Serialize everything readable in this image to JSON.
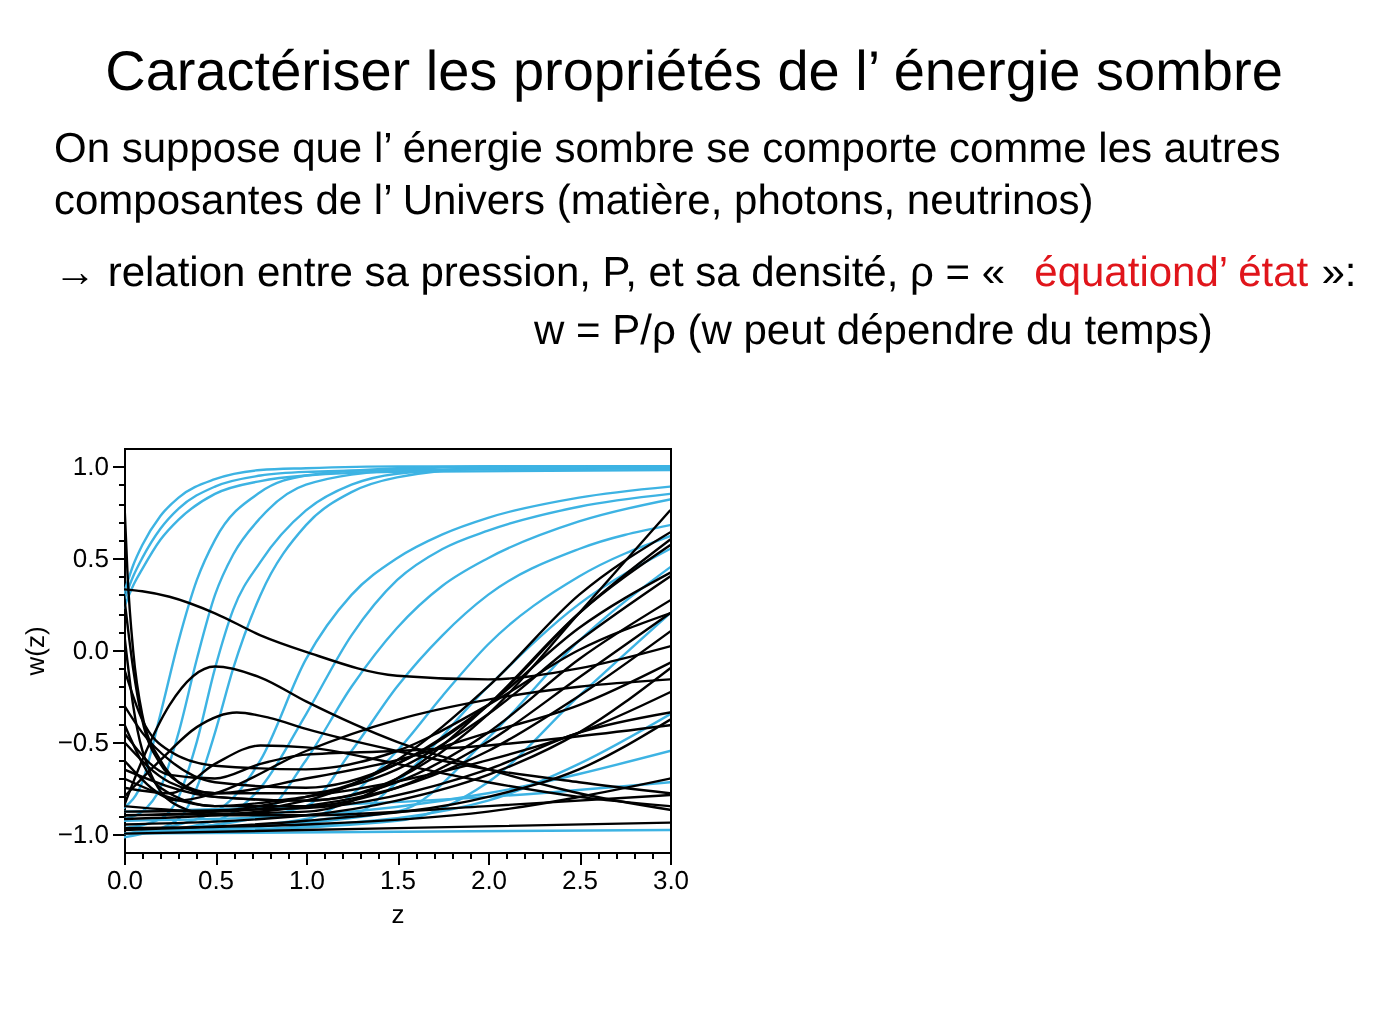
{
  "chart_data": {
    "type": "line",
    "title": "Caractériser les propriétés de l’ énergie sombre",
    "subtitle": "On suppose que l’ énergie sombre se comporte comme les autres composantes de l’ Univers (matière, photons, neutrinos)",
    "annotations": [
      "→ relation entre sa pression, P, et sa densité, ρ  = «",
      "équationd’ état",
      "»:",
      "w = P/ρ  (w peut dépendre du temps)"
    ],
    "xlabel": "z",
    "ylabel": "w(z)",
    "xlim": [
      0,
      3
    ],
    "ylim": [
      -1.1,
      1.1
    ],
    "xticks": [
      {
        "value": 0,
        "label": "0.0"
      },
      {
        "value": 0.1,
        "label": null
      },
      {
        "value": 0.2,
        "label": null
      },
      {
        "value": 0.3,
        "label": null
      },
      {
        "value": 0.4,
        "label": null
      },
      {
        "value": 0.5,
        "label": "0.5"
      },
      {
        "value": 0.6,
        "label": null
      },
      {
        "value": 0.7,
        "label": null
      },
      {
        "value": 0.8,
        "label": null
      },
      {
        "value": 0.9,
        "label": null
      },
      {
        "value": 1,
        "label": "1.0"
      },
      {
        "value": 1.1,
        "label": null
      },
      {
        "value": 1.2,
        "label": null
      },
      {
        "value": 1.3,
        "label": null
      },
      {
        "value": 1.4,
        "label": null
      },
      {
        "value": 1.5,
        "label": "1.5"
      },
      {
        "value": 1.6,
        "label": null
      },
      {
        "value": 1.7,
        "label": null
      },
      {
        "value": 1.8,
        "label": null
      },
      {
        "value": 1.9,
        "label": null
      },
      {
        "value": 2,
        "label": "2.0"
      },
      {
        "value": 2.1,
        "label": null
      },
      {
        "value": 2.2,
        "label": null
      },
      {
        "value": 2.3,
        "label": null
      },
      {
        "value": 2.4,
        "label": null
      },
      {
        "value": 2.5,
        "label": "2.5"
      },
      {
        "value": 2.6,
        "label": null
      },
      {
        "value": 2.7,
        "label": null
      },
      {
        "value": 2.8,
        "label": null
      },
      {
        "value": 2.9,
        "label": null
      },
      {
        "value": 3,
        "label": "3.0"
      }
    ],
    "yticks": [
      {
        "value": -1,
        "label": "−1.0"
      },
      {
        "value": -0.9,
        "label": null
      },
      {
        "value": -0.8,
        "label": null
      },
      {
        "value": -0.7,
        "label": null
      },
      {
        "value": -0.6,
        "label": null
      },
      {
        "value": -0.5,
        "label": "−0.5"
      },
      {
        "value": -0.4,
        "label": null
      },
      {
        "value": -0.3,
        "label": null
      },
      {
        "value": -0.2,
        "label": null
      },
      {
        "value": -0.1,
        "label": null
      },
      {
        "value": 0,
        "label": "0.0"
      },
      {
        "value": 0.1,
        "label": null
      },
      {
        "value": 0.2,
        "label": null
      },
      {
        "value": 0.3,
        "label": null
      },
      {
        "value": 0.4,
        "label": null
      },
      {
        "value": 0.5,
        "label": "0.5"
      },
      {
        "value": 0.6,
        "label": null
      },
      {
        "value": 0.7,
        "label": null
      },
      {
        "value": 0.8,
        "label": null
      },
      {
        "value": 0.9,
        "label": null
      },
      {
        "value": 1,
        "label": "1.0"
      }
    ],
    "grid": false,
    "series": [
      {
        "color": "#3db3e3",
        "x": [
          0,
          0.05,
          0.1,
          0.2,
          0.3,
          0.5,
          0.75,
          1.0,
          1.5,
          3.0
        ],
        "values": [
          0.31,
          0.46,
          0.57,
          0.73,
          0.83,
          0.93,
          0.98,
          0.99,
          1.0,
          1.0
        ]
      },
      {
        "color": "#3db3e3",
        "x": [
          0,
          0.05,
          0.1,
          0.2,
          0.3,
          0.5,
          0.75,
          1.0,
          1.5,
          3.0
        ],
        "values": [
          0.27,
          0.4,
          0.5,
          0.66,
          0.77,
          0.89,
          0.95,
          0.97,
          0.98,
          0.99
        ]
      },
      {
        "color": "#3db3e3",
        "x": [
          0,
          0.05,
          0.1,
          0.2,
          0.3,
          0.5,
          0.75,
          1.0,
          1.5,
          3.0
        ],
        "values": [
          0.23,
          0.35,
          0.44,
          0.6,
          0.71,
          0.85,
          0.92,
          0.95,
          0.97,
          0.98
        ]
      },
      {
        "color": "#3db3e3",
        "x": [
          0,
          0.1,
          0.2,
          0.3,
          0.4,
          0.5,
          0.75,
          1.0,
          1.5,
          2.0,
          3.0
        ],
        "values": [
          -0.86,
          -0.72,
          -0.35,
          0.05,
          0.38,
          0.6,
          0.86,
          0.95,
          0.99,
          1.0,
          1.0
        ]
      },
      {
        "color": "#3db3e3",
        "x": [
          0,
          0.1,
          0.2,
          0.3,
          0.4,
          0.5,
          0.6,
          0.75,
          1.0,
          1.5,
          2.0,
          3.0
        ],
        "values": [
          -0.92,
          -0.88,
          -0.75,
          -0.45,
          -0.05,
          0.3,
          0.52,
          0.72,
          0.9,
          0.98,
          1.0,
          1.0
        ]
      },
      {
        "color": "#3db3e3",
        "x": [
          0,
          0.2,
          0.3,
          0.4,
          0.5,
          0.6,
          0.75,
          1.0,
          1.25,
          1.5,
          2.0,
          3.0
        ],
        "values": [
          -0.97,
          -0.92,
          -0.8,
          -0.5,
          -0.1,
          0.22,
          0.48,
          0.76,
          0.9,
          0.96,
          0.99,
          1.0
        ]
      },
      {
        "color": "#3db3e3",
        "x": [
          0,
          0.3,
          0.4,
          0.5,
          0.6,
          0.75,
          1.0,
          1.25,
          1.5,
          2.0,
          3.0
        ],
        "values": [
          -1.02,
          -0.92,
          -0.75,
          -0.45,
          -0.1,
          0.3,
          0.68,
          0.86,
          0.94,
          0.99,
          1.0
        ]
      },
      {
        "color": "#3db3e3",
        "x": [
          0,
          0.5,
          0.75,
          1.0,
          1.25,
          1.5,
          1.75,
          2.0,
          2.5,
          3.0
        ],
        "values": [
          -1.0,
          -0.88,
          -0.6,
          -0.05,
          0.3,
          0.5,
          0.63,
          0.72,
          0.83,
          0.89
        ]
      },
      {
        "color": "#3db3e3",
        "x": [
          0,
          0.5,
          0.75,
          1.0,
          1.25,
          1.5,
          1.75,
          2.0,
          2.5,
          3.0
        ],
        "values": [
          -1.0,
          -0.93,
          -0.75,
          -0.35,
          0.08,
          0.38,
          0.55,
          0.65,
          0.78,
          0.85
        ]
      },
      {
        "color": "#3db3e3",
        "x": [
          0,
          0.75,
          1.0,
          1.25,
          1.5,
          1.75,
          2.0,
          2.5,
          3.0
        ],
        "values": [
          -1.0,
          -0.9,
          -0.6,
          -0.2,
          0.12,
          0.35,
          0.5,
          0.7,
          0.82
        ]
      },
      {
        "color": "#3db3e3",
        "x": [
          0,
          1.0,
          1.25,
          1.5,
          1.75,
          2.0,
          2.5,
          3.0
        ],
        "values": [
          -1.0,
          -0.85,
          -0.55,
          -0.2,
          0.08,
          0.3,
          0.55,
          0.68
        ]
      },
      {
        "color": "#3db3e3",
        "x": [
          0,
          1.0,
          1.5,
          1.75,
          2.0,
          2.5,
          3.0
        ],
        "values": [
          -1.0,
          -0.92,
          -0.55,
          -0.25,
          0.03,
          0.4,
          0.62
        ]
      },
      {
        "color": "#3db3e3",
        "x": [
          0,
          1.25,
          1.5,
          2.0,
          2.5,
          3.0
        ],
        "values": [
          -1.0,
          -0.9,
          -0.72,
          -0.2,
          0.25,
          0.55
        ]
      },
      {
        "color": "#3db3e3",
        "x": [
          0,
          1.5,
          2.0,
          2.5,
          3.0
        ],
        "values": [
          -1.0,
          -0.88,
          -0.48,
          0.05,
          0.45
        ]
      },
      {
        "color": "#3db3e3",
        "x": [
          0,
          1.5,
          2.0,
          2.5,
          3.0
        ],
        "values": [
          -1.0,
          -0.93,
          -0.72,
          -0.25,
          0.2
        ]
      },
      {
        "color": "#3db3e3",
        "x": [
          0,
          1.0,
          2.0,
          2.5,
          3.0
        ],
        "values": [
          -1.0,
          -0.96,
          -0.82,
          -0.62,
          -0.35
        ]
      },
      {
        "color": "#3db3e3",
        "x": [
          0,
          1.0,
          2.0,
          3.0
        ],
        "values": [
          -0.93,
          -0.9,
          -0.78,
          -0.55
        ]
      },
      {
        "color": "#3db3e3",
        "x": [
          0,
          1.0,
          2.0,
          3.0
        ],
        "values": [
          -0.88,
          -0.85,
          -0.8,
          -0.72
        ]
      },
      {
        "color": "#3db3e3",
        "x": [
          0,
          1.5,
          3.0
        ],
        "values": [
          -1.0,
          -0.99,
          -0.98
        ]
      },
      {
        "color": "#000000",
        "x": [
          0,
          0.1,
          0.25,
          0.5,
          0.75,
          1.0,
          1.5,
          2.0,
          2.5,
          3.0
        ],
        "values": [
          0.33,
          0.32,
          0.29,
          0.2,
          0.08,
          -0.01,
          -0.14,
          -0.16,
          -0.1,
          0.02
        ]
      },
      {
        "color": "#000000",
        "x": [
          0,
          0.1,
          0.25,
          0.5,
          0.75,
          1.0,
          1.5,
          2.0,
          2.5,
          3.0
        ],
        "values": [
          -0.85,
          -0.6,
          -0.3,
          -0.09,
          -0.15,
          -0.28,
          -0.5,
          -0.65,
          -0.78,
          -0.87
        ]
      },
      {
        "color": "#000000",
        "x": [
          0,
          0.2,
          0.4,
          0.62,
          0.8,
          1.0,
          1.5,
          2.0,
          2.5,
          3.0
        ],
        "values": [
          -0.8,
          -0.6,
          -0.42,
          -0.34,
          -0.37,
          -0.43,
          -0.55,
          -0.65,
          -0.72,
          -0.78
        ]
      },
      {
        "color": "#000000",
        "x": [
          0,
          0.05,
          0.1,
          0.2,
          0.3,
          0.5,
          1.0,
          1.5,
          2.0,
          2.5,
          3.0
        ],
        "values": [
          0.3,
          -0.1,
          -0.38,
          -0.62,
          -0.72,
          -0.78,
          -0.78,
          -0.62,
          -0.3,
          0.12,
          0.42
        ]
      },
      {
        "color": "#000000",
        "x": [
          0,
          0.02,
          0.05,
          0.1,
          0.2,
          0.3,
          0.5,
          1.0,
          1.5,
          2.0,
          2.5,
          3.0
        ],
        "values": [
          0.85,
          0.4,
          0.0,
          -0.35,
          -0.6,
          -0.72,
          -0.8,
          -0.82,
          -0.72,
          -0.45,
          -0.05,
          0.27
        ]
      },
      {
        "color": "#000000",
        "x": [
          0,
          0.1,
          0.25,
          0.5,
          1.0,
          1.5,
          2.0,
          2.5,
          3.0
        ],
        "values": [
          -0.1,
          -0.38,
          -0.55,
          -0.63,
          -0.65,
          -0.55,
          -0.3,
          0.0,
          0.2
        ]
      },
      {
        "color": "#000000",
        "x": [
          0,
          0.1,
          0.25,
          0.5,
          1.0,
          1.5,
          2.0,
          2.5,
          3.0
        ],
        "values": [
          -0.3,
          -0.45,
          -0.6,
          -0.72,
          -0.75,
          -0.62,
          -0.3,
          0.2,
          0.6
        ]
      },
      {
        "color": "#000000",
        "x": [
          0,
          0.5,
          1.0,
          1.5,
          2.0,
          2.5,
          3.0
        ],
        "values": [
          -0.65,
          -0.8,
          -0.82,
          -0.7,
          -0.35,
          0.2,
          0.76
        ]
      },
      {
        "color": "#000000",
        "x": [
          0,
          0.5,
          1.0,
          1.5,
          2.0,
          2.5,
          3.0
        ],
        "values": [
          -0.85,
          -0.88,
          -0.82,
          -0.6,
          -0.2,
          0.3,
          0.64
        ]
      },
      {
        "color": "#000000",
        "x": [
          0,
          0.5,
          1.0,
          1.5,
          2.0,
          2.5,
          3.0
        ],
        "values": [
          -0.9,
          -0.88,
          -0.8,
          -0.65,
          -0.35,
          0.05,
          0.4
        ]
      },
      {
        "color": "#000000",
        "x": [
          0,
          0.5,
          1.0,
          1.5,
          2.0,
          2.5,
          3.0
        ],
        "values": [
          -0.92,
          -0.9,
          -0.85,
          -0.75,
          -0.55,
          -0.25,
          0.1
        ]
      },
      {
        "color": "#000000",
        "x": [
          0,
          1.0,
          1.5,
          2.0,
          2.5,
          3.0
        ],
        "values": [
          -0.95,
          -0.9,
          -0.82,
          -0.68,
          -0.45,
          -0.1
        ]
      },
      {
        "color": "#000000",
        "x": [
          0,
          1.0,
          2.0,
          2.5,
          3.0
        ],
        "values": [
          -0.98,
          -0.93,
          -0.8,
          -0.65,
          -0.38
        ]
      },
      {
        "color": "#000000",
        "x": [
          0,
          1.0,
          2.0,
          3.0
        ],
        "values": [
          -0.97,
          -0.95,
          -0.88,
          -0.7
        ]
      },
      {
        "color": "#000000",
        "x": [
          0,
          1.5,
          3.0
        ],
        "values": [
          -1.0,
          -0.97,
          -0.94
        ]
      },
      {
        "color": "#000000",
        "x": [
          0,
          0.25,
          0.5,
          0.75,
          1.0,
          1.5,
          2.0,
          2.5,
          3.0
        ],
        "values": [
          -0.45,
          -0.68,
          -0.7,
          -0.62,
          -0.57,
          -0.55,
          -0.52,
          -0.47,
          -0.41
        ]
      },
      {
        "color": "#000000",
        "x": [
          0,
          0.25,
          0.5,
          0.75,
          1.0,
          1.5,
          2.0,
          2.5,
          3.0
        ],
        "values": [
          -0.75,
          -0.78,
          -0.62,
          -0.52,
          -0.53,
          -0.62,
          -0.72,
          -0.8,
          -0.85
        ]
      },
      {
        "color": "#000000",
        "x": [
          0,
          0.2,
          0.5,
          1.0,
          2.0,
          2.5,
          3.0
        ],
        "values": [
          -0.4,
          -0.75,
          -0.85,
          -0.8,
          -0.6,
          -0.45,
          -0.23
        ]
      },
      {
        "color": "#000000",
        "x": [
          0,
          0.3,
          0.5,
          1.0,
          1.5,
          2.0,
          2.5,
          3.0
        ],
        "values": [
          -0.6,
          -0.82,
          -0.78,
          -0.55,
          -0.38,
          -0.27,
          -0.2,
          -0.16
        ]
      },
      {
        "color": "#000000",
        "x": [
          0,
          0.05,
          0.15,
          0.3,
          0.5,
          1.0,
          2.0,
          3.0
        ],
        "values": [
          0.1,
          -0.3,
          -0.68,
          -0.85,
          -0.9,
          -0.9,
          -0.85,
          -0.79
        ]
      },
      {
        "color": "#000000",
        "x": [
          0,
          0.5,
          1.0,
          1.5,
          2.0,
          2.5,
          3.0
        ],
        "values": [
          -0.7,
          -0.85,
          -0.85,
          -0.75,
          -0.5,
          -0.15,
          0.2
        ]
      },
      {
        "color": "#000000",
        "x": [
          0,
          1.0,
          2.0,
          2.5,
          3.0
        ],
        "values": [
          -0.88,
          -0.86,
          -0.65,
          -0.45,
          -0.34
        ]
      },
      {
        "color": "#000000",
        "x": [
          0,
          1.0,
          1.5,
          2.0,
          2.5,
          3.0
        ],
        "values": [
          -0.9,
          -0.88,
          -0.7,
          -0.3,
          0.2,
          0.57
        ]
      },
      {
        "color": "#000000",
        "x": [
          0,
          0.25,
          0.5,
          1.0,
          1.5,
          2.0,
          2.5,
          3.0
        ],
        "values": [
          -0.5,
          -0.72,
          -0.78,
          -0.7,
          -0.6,
          -0.45,
          -0.3,
          -0.07
        ]
      }
    ]
  }
}
